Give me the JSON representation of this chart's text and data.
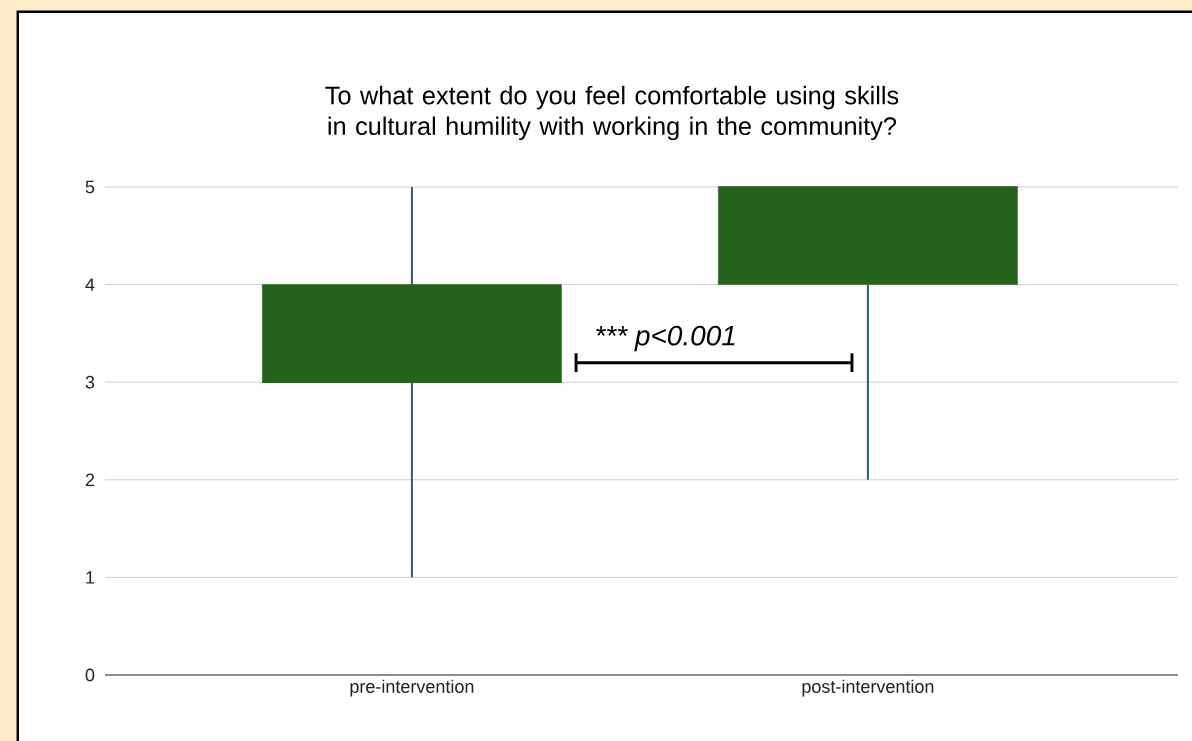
{
  "chart_data": {
    "type": "box",
    "title": "To what extent do you feel comfortable using skills in cultural humility with working in the community?",
    "categories": [
      "pre-intervention",
      "post-intervention"
    ],
    "series": [
      {
        "color": "#25621a",
        "boxes": [
          {
            "low": 1,
            "q1": 3,
            "median": 3,
            "q3": 4,
            "high": 5
          },
          {
            "low": 2,
            "q1": 4,
            "median": 5,
            "q3": 5,
            "high": 5
          }
        ]
      }
    ],
    "ylim": [
      0,
      5
    ],
    "yticks": [
      0,
      1,
      2,
      3,
      4,
      5
    ],
    "grid": "y",
    "annotations": [
      "*** p<0.001"
    ]
  }
}
